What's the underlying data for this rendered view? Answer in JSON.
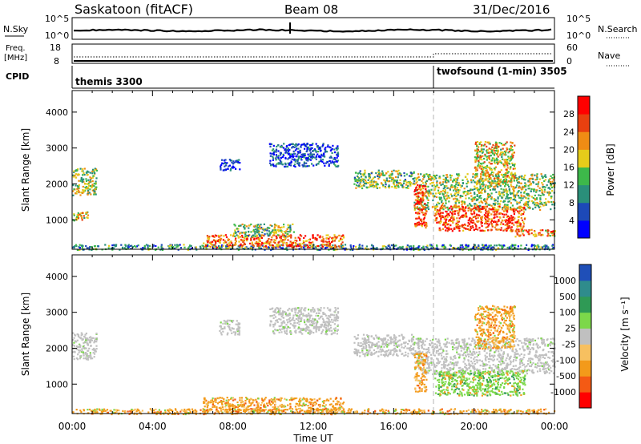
{
  "header": {
    "station": "Saskatoon (fitACF)",
    "beam": "Beam 08",
    "date": "31/Dec/2016"
  },
  "panels": {
    "nsky": {
      "label": "N.Sky",
      "left_ticks": [
        "10^5",
        "10^0"
      ],
      "right_ticks": [
        "10^5",
        "10^0"
      ],
      "right_label": "N.Search"
    },
    "freq": {
      "label_line1": "Freq.",
      "label_line2": "[MHz]",
      "left_ticks": [
        "18",
        "8"
      ],
      "right_ticks": [
        "60",
        "0"
      ],
      "right_label": "Nave"
    },
    "cpid": {
      "label": "CPID",
      "segments": [
        "themis 3300",
        "twofsound (1-min) 3505"
      ]
    }
  },
  "colors": {
    "frame": "#000000",
    "grid_dash": "#b4b4b4",
    "ground_scatter": "#c0c0c0"
  },
  "chart_data": [
    {
      "type": "heatmap",
      "ylabel": "Slant Range [km]",
      "xlabel": "",
      "x_ticks": [
        "00:00",
        "04:00",
        "08:00",
        "12:00",
        "16:00",
        "20:00",
        "00:00"
      ],
      "y_ticks": [
        "1000",
        "2000",
        "3000",
        "4000"
      ],
      "xlim": [
        0,
        24
      ],
      "ylim": [
        180,
        4600
      ],
      "colorbar": {
        "label": "Power [dB]",
        "ticks": [
          "28",
          "24",
          "20",
          "16",
          "12",
          "8",
          "4"
        ],
        "range": [
          0,
          30
        ],
        "colors": [
          "#0000ff",
          "#1d49b8",
          "#2a8f7a",
          "#3db84a",
          "#e6cc1a",
          "#f08c14",
          "#e8400f",
          "#ff0000"
        ]
      },
      "regions": [
        {
          "t0": 0.0,
          "t1": 0.8,
          "r0": 1000,
          "r1": 1250,
          "level": 0.55
        },
        {
          "t0": 0.0,
          "t1": 1.2,
          "r0": 1700,
          "r1": 2450,
          "level": 0.5
        },
        {
          "t0": 0.0,
          "t1": 24.0,
          "r0": 180,
          "r1": 330,
          "level": 0.3
        },
        {
          "t0": 6.5,
          "t1": 13.5,
          "r0": 250,
          "r1": 600,
          "level": 0.75
        },
        {
          "t0": 8.0,
          "t1": 11.0,
          "r0": 550,
          "r1": 900,
          "level": 0.45
        },
        {
          "t0": 7.3,
          "t1": 8.3,
          "r0": 2400,
          "r1": 2700,
          "level": 0.12
        },
        {
          "t0": 9.8,
          "t1": 13.2,
          "r0": 2500,
          "r1": 3150,
          "level": 0.15
        },
        {
          "t0": 14.0,
          "t1": 17.0,
          "r0": 1900,
          "r1": 2400,
          "level": 0.45
        },
        {
          "t0": 17.0,
          "t1": 24.0,
          "r0": 1300,
          "r1": 2300,
          "level": 0.5
        },
        {
          "t0": 17.0,
          "t1": 17.6,
          "r0": 800,
          "r1": 2000,
          "level": 0.85
        },
        {
          "t0": 18.0,
          "t1": 22.5,
          "r0": 700,
          "r1": 1400,
          "level": 0.8
        },
        {
          "t0": 20.0,
          "t1": 22.0,
          "r0": 2000,
          "r1": 3200,
          "level": 0.6
        },
        {
          "t0": 22.0,
          "t1": 24.0,
          "r0": 550,
          "r1": 750,
          "level": 0.7
        }
      ]
    },
    {
      "type": "heatmap",
      "ylabel": "Slant Range [km]",
      "xlabel": "Time UT",
      "x_ticks": [
        "00:00",
        "04:00",
        "08:00",
        "12:00",
        "16:00",
        "20:00",
        "00:00"
      ],
      "y_ticks": [
        "1000",
        "2000",
        "3000",
        "4000"
      ],
      "xlim": [
        0,
        24
      ],
      "ylim": [
        180,
        4600
      ],
      "colorbar": {
        "label": "Velocity [m s⁻¹]",
        "ticks": [
          "1000",
          "500",
          "100",
          "25",
          "-25",
          "-100",
          "-500",
          "-1000"
        ],
        "range": [
          -1000,
          1000
        ],
        "colors": [
          "#ff0000",
          "#f45a14",
          "#f39a1a",
          "#f7c060",
          "#c0c0c0",
          "#7cd84a",
          "#2f9a55",
          "#2f8c8c",
          "#1f4fb8"
        ]
      },
      "regions": [
        {
          "t0": 0.0,
          "t1": 1.2,
          "r0": 1700,
          "r1": 2450,
          "kind": "ground"
        },
        {
          "t0": 0.0,
          "t1": 24.0,
          "r0": 180,
          "r1": 330,
          "kind": "orange"
        },
        {
          "t0": 6.5,
          "t1": 13.5,
          "r0": 250,
          "r1": 650,
          "kind": "orange"
        },
        {
          "t0": 7.3,
          "t1": 8.3,
          "r0": 2400,
          "r1": 2800,
          "kind": "ground"
        },
        {
          "t0": 9.8,
          "t1": 13.2,
          "r0": 2400,
          "r1": 3150,
          "kind": "ground"
        },
        {
          "t0": 14.0,
          "t1": 17.0,
          "r0": 1800,
          "r1": 2400,
          "kind": "ground"
        },
        {
          "t0": 17.0,
          "t1": 24.0,
          "r0": 1300,
          "r1": 2300,
          "kind": "ground"
        },
        {
          "t0": 17.0,
          "t1": 17.6,
          "r0": 800,
          "r1": 1900,
          "kind": "orange"
        },
        {
          "t0": 18.0,
          "t1": 22.5,
          "r0": 700,
          "r1": 1400,
          "kind": "green"
        },
        {
          "t0": 20.0,
          "t1": 22.0,
          "r0": 2000,
          "r1": 3200,
          "kind": "orange"
        }
      ]
    }
  ]
}
